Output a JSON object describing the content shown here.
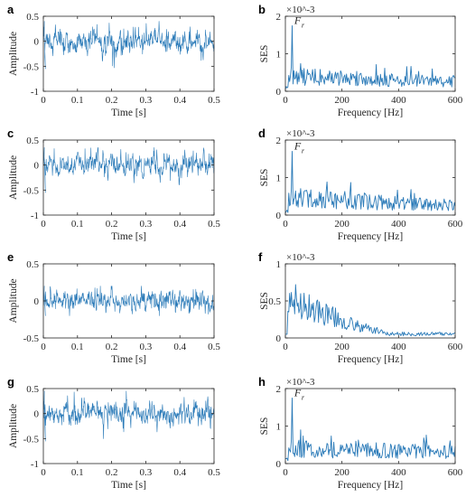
{
  "colors": {
    "signal": "#2a7ab8",
    "axis": "#262626"
  },
  "chart_data": [
    {
      "panel": "a",
      "type": "line",
      "xlabel": "Time [s]",
      "ylabel": "Amplitude",
      "xlim": [
        0,
        0.5
      ],
      "ylim": [
        -1,
        0.5
      ],
      "xticks": [
        "0",
        "0.1",
        "0.2",
        "0.3",
        "0.4",
        "0.5"
      ],
      "yticks": [
        "-1",
        "-0.5",
        "0",
        "0.5"
      ],
      "series": [
        {
          "x_range": [
            0,
            0.5
          ],
          "points": 600,
          "mean": 0.0,
          "std": 0.1,
          "min": -0.55,
          "max": 0.4
        }
      ]
    },
    {
      "panel": "b",
      "type": "line",
      "xlabel": "Frequency [Hz]",
      "ylabel": "SES",
      "xlim": [
        0,
        600
      ],
      "ylim": [
        0,
        2
      ],
      "y_multiplier": "×10^-3",
      "xticks": [
        "0",
        "200",
        "400",
        "600"
      ],
      "yticks": [
        "0",
        "1",
        "2"
      ],
      "annotation": {
        "label": "F",
        "subscript": "r",
        "x": 25,
        "y": 1.75
      },
      "series": [
        {
          "peak": {
            "x": 25,
            "y": 1.75
          },
          "baseline_start": 0.4,
          "baseline_end": 0.25
        }
      ]
    },
    {
      "panel": "c",
      "type": "line",
      "xlabel": "Time [s]",
      "ylabel": "Amplitude",
      "xlim": [
        0,
        0.5
      ],
      "ylim": [
        -1,
        0.5
      ],
      "xticks": [
        "0",
        "0.1",
        "0.2",
        "0.3",
        "0.4",
        "0.5"
      ],
      "yticks": [
        "-1",
        "-0.5",
        "0",
        "0.5"
      ],
      "series": [
        {
          "x_range": [
            0,
            0.5
          ],
          "points": 600,
          "mean": 0.0,
          "std": 0.1,
          "min": -0.55,
          "max": 0.35
        }
      ]
    },
    {
      "panel": "d",
      "type": "line",
      "xlabel": "Frequency [Hz]",
      "ylabel": "SES",
      "xlim": [
        0,
        600
      ],
      "ylim": [
        0,
        2
      ],
      "y_multiplier": "×10^-3",
      "xticks": [
        "0",
        "200",
        "400",
        "600"
      ],
      "yticks": [
        "0",
        "1",
        "2"
      ],
      "annotation": {
        "label": "F",
        "subscript": "r",
        "x": 25,
        "y": 1.7
      },
      "series": [
        {
          "peak": {
            "x": 25,
            "y": 1.7
          },
          "baseline_start": 0.45,
          "baseline_end": 0.25
        }
      ]
    },
    {
      "panel": "e",
      "type": "line",
      "xlabel": "Time [s]",
      "ylabel": "Amplitude",
      "xlim": [
        0,
        0.5
      ],
      "ylim": [
        -0.5,
        0.5
      ],
      "xticks": [
        "0",
        "0.1",
        "0.2",
        "0.3",
        "0.4",
        "0.5"
      ],
      "yticks": [
        "-0.5",
        "0",
        "0.5"
      ],
      "series": [
        {
          "x_range": [
            0,
            0.5
          ],
          "points": 600,
          "mean": 0.0,
          "std": 0.06,
          "min": -0.2,
          "max": 0.2
        }
      ]
    },
    {
      "panel": "f",
      "type": "line",
      "xlabel": "Frequency [Hz]",
      "ylabel": "SES",
      "xlim": [
        0,
        600
      ],
      "ylim": [
        0,
        1
      ],
      "y_multiplier": "×10^-3",
      "xticks": [
        "0",
        "200",
        "400",
        "600"
      ],
      "yticks": [
        "0",
        "0.5",
        "1"
      ],
      "series": [
        {
          "start_level": 0.6,
          "decay_to_hz": 250,
          "tail_level": 0.06
        }
      ]
    },
    {
      "panel": "g",
      "type": "line",
      "xlabel": "Time [s]",
      "ylabel": "Amplitude",
      "xlim": [
        0,
        0.5
      ],
      "ylim": [
        -1,
        0.5
      ],
      "xticks": [
        "0",
        "0.1",
        "0.2",
        "0.3",
        "0.4",
        "0.5"
      ],
      "yticks": [
        "-1",
        "-0.5",
        "0",
        "0.5"
      ],
      "series": [
        {
          "x_range": [
            0,
            0.5
          ],
          "points": 600,
          "mean": 0.0,
          "std": 0.1,
          "min": -0.55,
          "max": 0.45
        }
      ]
    },
    {
      "panel": "h",
      "type": "line",
      "xlabel": "Frequency [Hz]",
      "ylabel": "SES",
      "xlim": [
        0,
        600
      ],
      "ylim": [
        0,
        2
      ],
      "y_multiplier": "×10^-3",
      "xticks": [
        "0",
        "200",
        "400",
        "600"
      ],
      "yticks": [
        "0",
        "1",
        "2"
      ],
      "annotation": {
        "label": "F",
        "subscript": "r",
        "x": 25,
        "y": 1.75
      },
      "series": [
        {
          "peak": {
            "x": 25,
            "y": 1.75
          },
          "baseline_start": 0.4,
          "baseline_end": 0.3
        }
      ]
    }
  ]
}
